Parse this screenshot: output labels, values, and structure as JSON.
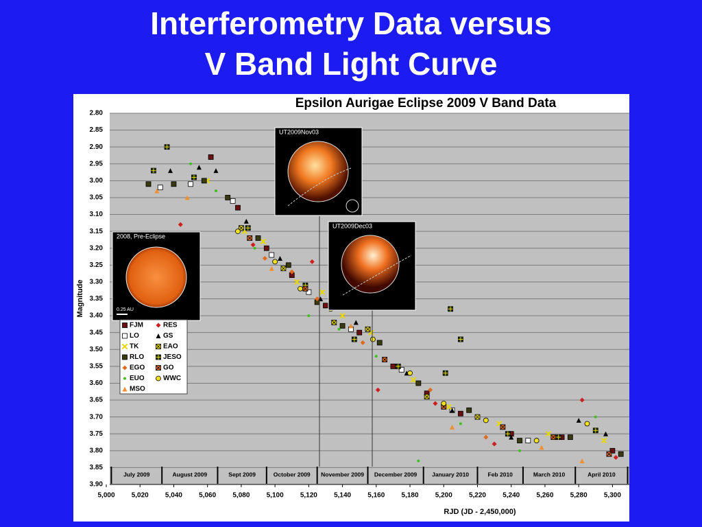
{
  "slide_title": [
    "Interferometry Data versus",
    "V Band Light Curve"
  ],
  "insets": [
    "UT2009Nov03",
    "UT2009Dec03",
    "2008, Pre-Eclipse",
    "0.25 AU"
  ],
  "chart_data": {
    "type": "scatter",
    "title": "Epsilon Aurigae Eclipse 2009 V Band Data",
    "x_label": "RJD (JD - 2,450,000)",
    "y_label": "Magnitude",
    "xlim": [
      5000,
      5310
    ],
    "ylim": [
      3.9,
      2.8
    ],
    "grid": true,
    "xticks": [
      {
        "value": 5000,
        "label": "5,000"
      },
      {
        "value": 5020,
        "label": "5,020"
      },
      {
        "value": 5040,
        "label": "5,040"
      },
      {
        "value": 5060,
        "label": "5,060"
      },
      {
        "value": 5080,
        "label": "5,080"
      },
      {
        "value": 5100,
        "label": "5,100"
      },
      {
        "value": 5120,
        "label": "5,120"
      },
      {
        "value": 5140,
        "label": "5,140"
      },
      {
        "value": 5160,
        "label": "5,160"
      },
      {
        "value": 5180,
        "label": "5,180"
      },
      {
        "value": 5200,
        "label": "5,200"
      },
      {
        "value": 5220,
        "label": "5,220"
      },
      {
        "value": 5240,
        "label": "5,240"
      },
      {
        "value": 5260,
        "label": "5,260"
      },
      {
        "value": 5280,
        "label": "5,280"
      },
      {
        "value": 5300,
        "label": "5,300"
      }
    ],
    "yticks": [
      {
        "value": 2.8,
        "label": "2.80"
      },
      2.85,
      {
        "value": 2.9,
        "label": "2.90"
      },
      2.95,
      {
        "value": 3.0,
        "label": "3.00"
      },
      3.05,
      {
        "value": 3.1,
        "label": "3.10"
      },
      3.15,
      {
        "value": 3.2,
        "label": "3.20"
      },
      3.25,
      {
        "value": 3.3,
        "label": "3.30"
      },
      3.35,
      {
        "value": 3.4,
        "label": "3.40"
      },
      3.45,
      {
        "value": 3.5,
        "label": "3.50"
      },
      3.55,
      {
        "value": 3.6,
        "label": "3.60"
      },
      3.65,
      {
        "value": 3.7,
        "label": "3.70"
      },
      3.75,
      {
        "value": 3.8,
        "label": "3.80"
      },
      3.85,
      {
        "value": 3.9,
        "label": "3.90"
      }
    ],
    "month_bands": {
      "labels": [
        "July 2009",
        "August 2009",
        "Sept 2009",
        "October 2009",
        "November 2009",
        "December 2009",
        "January 2010",
        "Feb 2010",
        "March 2010",
        "April 2010"
      ],
      "edges": [
        5003,
        5033,
        5066,
        5095,
        5125,
        5155,
        5188,
        5220,
        5247,
        5278,
        5309
      ]
    },
    "series": [
      {
        "name": "FJM",
        "color": "#6b1010",
        "marker": "square",
        "x": [
          5062,
          5078,
          5095,
          5110,
          5130,
          5150,
          5170,
          5190,
          5210,
          5240,
          5270,
          5300
        ],
        "values": [
          2.93,
          3.08,
          3.2,
          3.28,
          3.37,
          3.45,
          3.55,
          3.63,
          3.69,
          3.75,
          3.76,
          3.8
        ]
      },
      {
        "name": "RES",
        "color": "#cc2020",
        "marker": "diamond",
        "x": [
          5044,
          5087,
          5122,
          5161,
          5195,
          5230,
          5282,
          5302
        ],
        "values": [
          3.13,
          3.19,
          3.24,
          3.62,
          3.66,
          3.78,
          3.65,
          3.82
        ]
      },
      {
        "name": "LO",
        "color": "#ffffff",
        "marker": "square",
        "x": [
          5032,
          5050,
          5075,
          5098,
          5120,
          5145,
          5175,
          5205,
          5250
        ],
        "values": [
          3.02,
          3.01,
          3.06,
          3.22,
          3.33,
          3.44,
          3.56,
          3.68,
          3.77
        ]
      },
      {
        "name": "GS",
        "color": "#000000",
        "marker": "triangle",
        "x": [
          5038,
          5055,
          5065,
          5083,
          5103,
          5127,
          5148,
          5178,
          5205,
          5240,
          5280,
          5296
        ],
        "values": [
          2.97,
          2.96,
          2.97,
          3.12,
          3.23,
          3.35,
          3.42,
          3.57,
          3.68,
          3.76,
          3.71,
          3.75
        ]
      },
      {
        "name": "TK",
        "color": "#e8d800",
        "marker": "x",
        "x": [
          5060,
          5082,
          5093,
          5113,
          5128,
          5140,
          5157,
          5182,
          5203,
          5233,
          5262,
          5295
        ],
        "values": [
          3.0,
          3.15,
          3.18,
          3.3,
          3.33,
          3.4,
          3.45,
          3.59,
          3.67,
          3.72,
          3.75,
          3.77
        ]
      },
      {
        "name": "EAO",
        "color": "#e8d800",
        "marker": "x-square",
        "x": [
          5080,
          5105,
          5135,
          5155,
          5190,
          5220
        ],
        "values": [
          3.14,
          3.26,
          3.42,
          3.44,
          3.64,
          3.7
        ]
      },
      {
        "name": "RLO",
        "color": "#3a3a10",
        "marker": "square",
        "x": [
          5025,
          5040,
          5058,
          5072,
          5090,
          5108,
          5125,
          5140,
          5162,
          5185,
          5215,
          5245,
          5275,
          5305
        ],
        "values": [
          3.01,
          3.01,
          3.0,
          3.05,
          3.17,
          3.25,
          3.36,
          3.43,
          3.48,
          3.6,
          3.68,
          3.77,
          3.76,
          3.81
        ]
      },
      {
        "name": "JESO",
        "color": "#1e2e10",
        "marker": "cross-square",
        "x": [
          5028,
          5036,
          5052,
          5084,
          5118,
          5147,
          5173,
          5201,
          5204,
          5210,
          5238,
          5268,
          5290
        ],
        "values": [
          2.97,
          2.9,
          2.99,
          3.14,
          3.31,
          3.47,
          3.55,
          3.57,
          3.38,
          3.47,
          3.75,
          3.76,
          3.74
        ]
      },
      {
        "name": "EGO",
        "color": "#e06a20",
        "marker": "diamond",
        "x": [
          5094,
          5110,
          5125,
          5152,
          5192,
          5225,
          5255
        ],
        "values": [
          3.23,
          3.27,
          3.35,
          3.48,
          3.62,
          3.76,
          3.77
        ]
      },
      {
        "name": "GO",
        "color": "#e06a20",
        "marker": "x-square",
        "x": [
          5085,
          5118,
          5165,
          5200,
          5235,
          5265,
          5298
        ],
        "values": [
          3.17,
          3.32,
          3.53,
          3.67,
          3.73,
          3.76,
          3.81
        ]
      },
      {
        "name": "EUO",
        "color": "#40c020",
        "marker": "dot",
        "x": [
          5050,
          5065,
          5088,
          5120,
          5138,
          5160,
          5185,
          5210,
          5245,
          5290
        ],
        "values": [
          2.95,
          3.03,
          3.2,
          3.4,
          3.44,
          3.52,
          3.83,
          3.72,
          3.8,
          3.7
        ]
      },
      {
        "name": "WWC",
        "color": "#f0e020",
        "marker": "circle",
        "x": [
          5078,
          5100,
          5115,
          5133,
          5158,
          5180,
          5200,
          5225,
          5255,
          5285
        ],
        "values": [
          3.15,
          3.24,
          3.32,
          3.38,
          3.47,
          3.57,
          3.66,
          3.71,
          3.77,
          3.72
        ]
      },
      {
        "name": "MSO",
        "color": "#f09030",
        "marker": "triangle",
        "x": [
          5030,
          5048,
          5098,
          5145,
          5205,
          5258,
          5282
        ],
        "values": [
          3.03,
          3.05,
          3.26,
          3.43,
          3.73,
          3.79,
          3.83
        ]
      }
    ]
  }
}
